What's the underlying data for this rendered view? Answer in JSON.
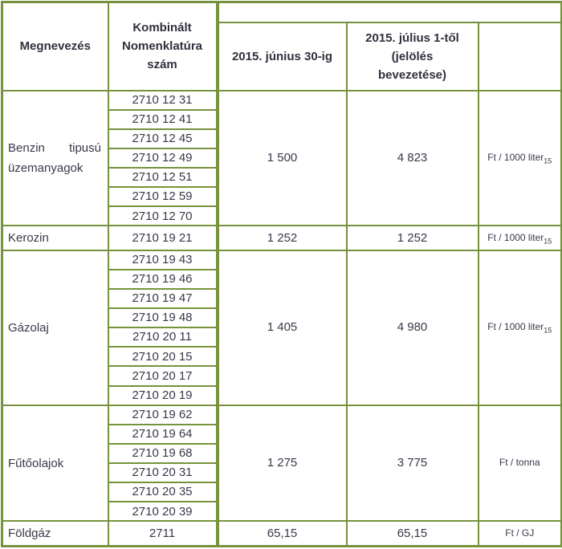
{
  "colors": {
    "table_border": "#76923C",
    "text": "#38384a"
  },
  "table": {
    "header": {
      "col1": "Megnevezés",
      "col2": "Kombinált Nomenklatúra szám",
      "spacer": "",
      "col3": "2015. június 30-ig",
      "col4": "2015. július 1-től (jelölés bevezetése)",
      "col5": ""
    },
    "groups": [
      {
        "name": "Benzin tipusú üzemanyagok",
        "codes": [
          "2710 12 31",
          "2710 12 41",
          "2710 12 45",
          "2710 12 49",
          "2710 12 51",
          "2710 12 59",
          "2710 12 70"
        ],
        "until": "1 500",
        "from": "4 823",
        "unit": "Ft / 1000 liter",
        "unit_sub": "15"
      },
      {
        "name": "Kerozin",
        "codes": [
          "2710 19 21"
        ],
        "until": "1 252",
        "from": "1 252",
        "unit": "Ft / 1000 liter",
        "unit_sub": "15"
      },
      {
        "name": "Gázolaj",
        "codes": [
          "2710 19 43",
          "2710 19 46",
          "2710 19 47",
          "2710 19 48",
          "2710 20 11",
          "2710 20 15",
          "2710 20 17",
          "2710 20 19"
        ],
        "until": "1 405",
        "from": "4 980",
        "unit": "Ft / 1000 liter",
        "unit_sub": "15"
      },
      {
        "name": "Fűtőolajok",
        "codes": [
          "2710 19 62",
          "2710 19 64",
          "2710 19 68",
          "2710 20 31",
          "2710 20 35",
          "2710 20 39"
        ],
        "until": "1 275",
        "from": "3 775",
        "unit": "Ft / tonna",
        "unit_sub": ""
      },
      {
        "name": "Földgáz",
        "codes": [
          "2711"
        ],
        "until": "65,15",
        "from": "65,15",
        "unit": "Ft / GJ",
        "unit_sub": ""
      }
    ]
  }
}
